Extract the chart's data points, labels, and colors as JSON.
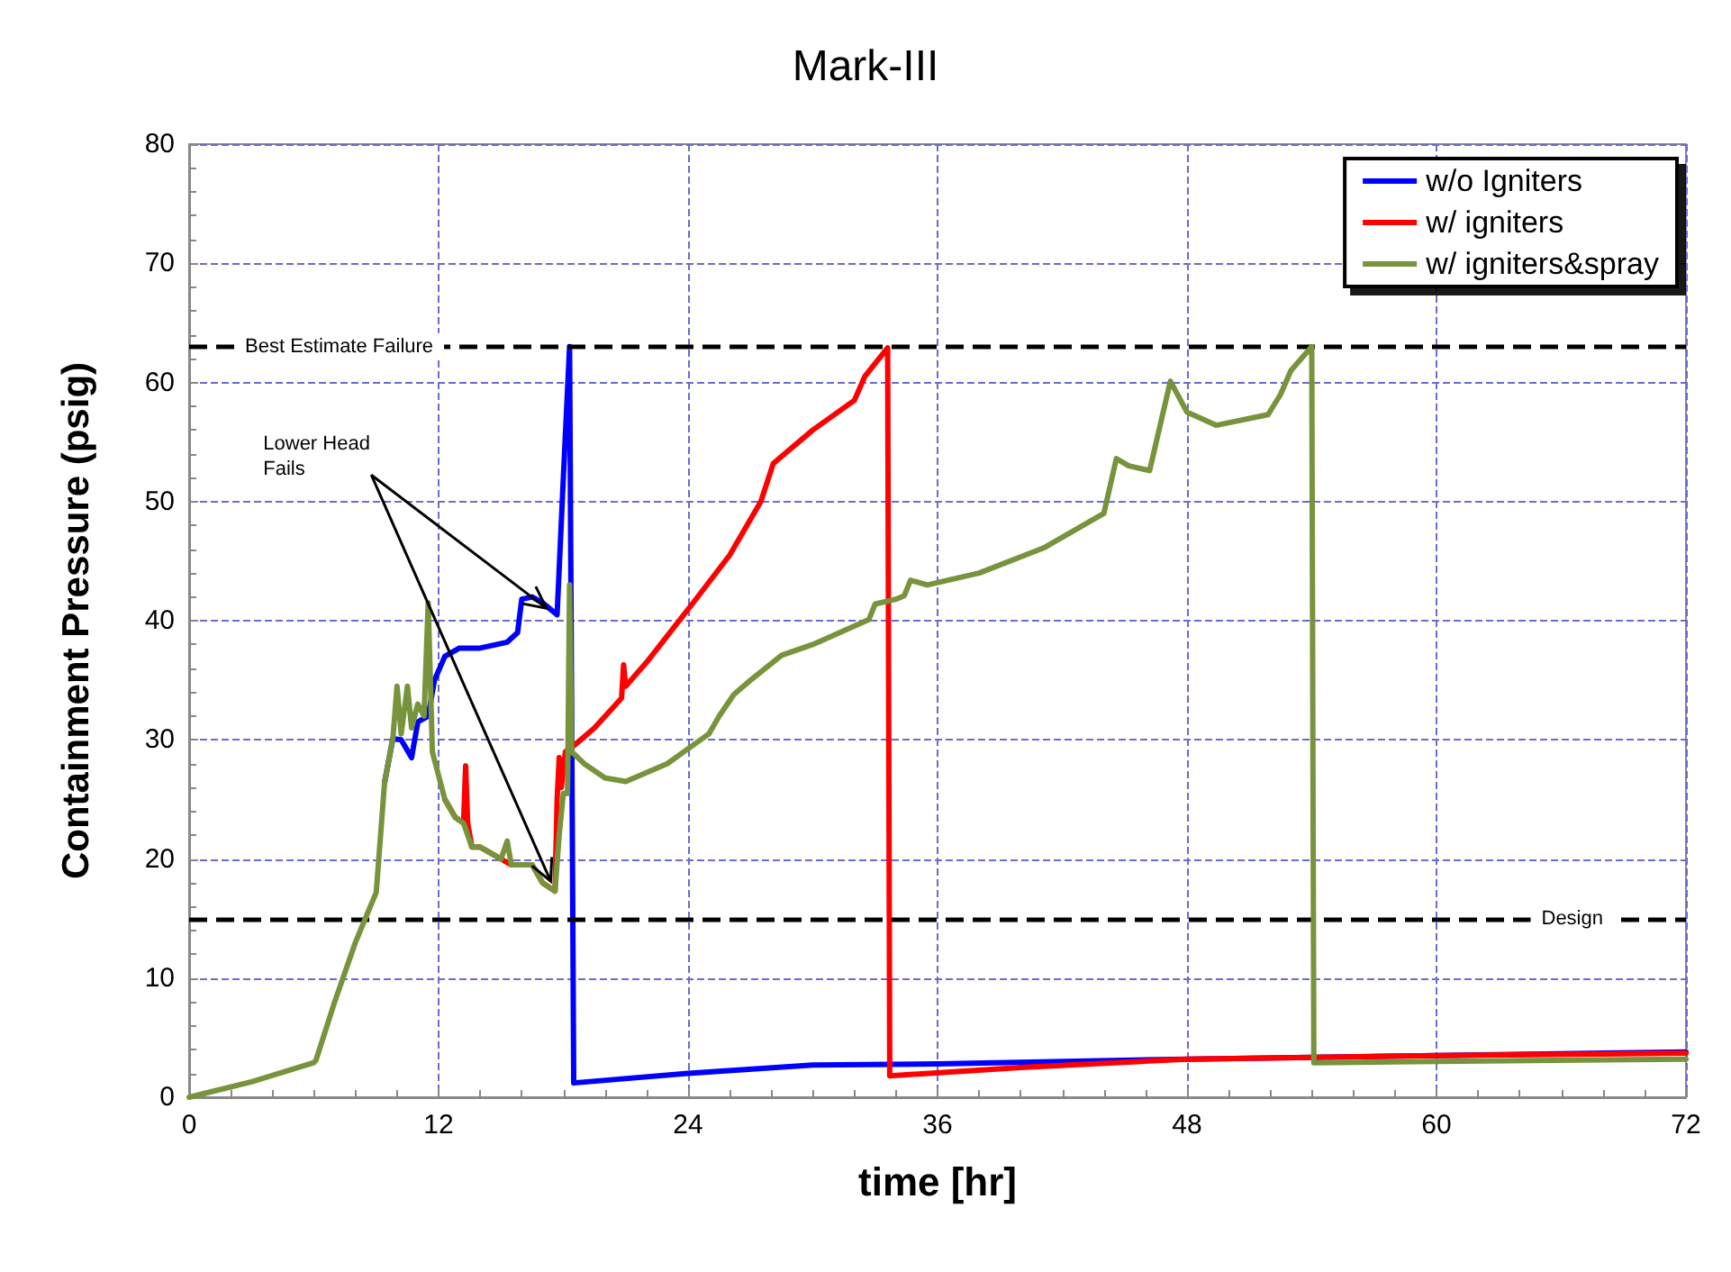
{
  "chart_data": {
    "type": "line",
    "title": "Mark-III",
    "xlabel": "time [hr]",
    "ylabel": "Containment Pressure (psig)",
    "xlim": [
      0,
      72
    ],
    "xticks": [
      0,
      12,
      24,
      36,
      48,
      60,
      72
    ],
    "ylim": [
      0,
      80
    ],
    "yticks": [
      0,
      10,
      20,
      30,
      40,
      50,
      60,
      70,
      80
    ],
    "grid": true,
    "legend": "top right",
    "marker": "none",
    "line_style": "solid",
    "series": [
      {
        "name": "w/o Igniters",
        "color": "#0000ff",
        "x": [
          9.4,
          9.8,
          10.2,
          10.7,
          11.0,
          11.5,
          11.8,
          12.3,
          13.0,
          14.0,
          15.3,
          15.8,
          16.0,
          16.5,
          17.0,
          17.7,
          18.0,
          18.3,
          18.5,
          24,
          30,
          36,
          48,
          60,
          72
        ],
        "values": [
          26.4,
          30.1,
          30,
          28.5,
          31.5,
          32,
          35,
          37,
          37.7,
          37.7,
          38.2,
          39,
          41.8,
          42,
          41.5,
          40.5,
          52,
          63,
          1.2,
          2.0,
          2.7,
          2.8,
          3.2,
          3.5,
          3.8
        ]
      },
      {
        "name": "w/ igniters",
        "color": "#ff0000",
        "x": [
          12.3,
          12.8,
          13.2,
          13.3,
          13.4,
          13.6,
          14.0,
          14.5,
          15.0,
          15.5,
          16.5,
          17.0,
          17.6,
          17.7,
          17.8,
          17.9,
          18.1,
          18.5,
          19.5,
          20.8,
          20.9,
          21.0,
          22,
          24.2,
          26,
          27.5,
          28.1,
          30,
          32,
          32.5,
          33.6,
          33.7,
          40,
          48,
          60,
          72
        ],
        "values": [
          25,
          23.5,
          23,
          27.8,
          23,
          21,
          21,
          20.5,
          20,
          19.5,
          19.5,
          18,
          17.3,
          25,
          28.5,
          26,
          29,
          29.5,
          31,
          33.5,
          36.3,
          34.5,
          36.5,
          41.4,
          45.5,
          50,
          53.2,
          56,
          58.5,
          60.5,
          62.9,
          1.8,
          2.5,
          3.2,
          3.5,
          3.7
        ]
      },
      {
        "name": "w/ igniters&spray",
        "color": "#77933c",
        "x": [
          0,
          3,
          6,
          6.1,
          7,
          8,
          9,
          9.4,
          9.8,
          10.0,
          10.2,
          10.5,
          10.7,
          11.0,
          11.3,
          11.5,
          11.7,
          12.0,
          12.3,
          12.8,
          13.2,
          13.6,
          14.0,
          14.5,
          15.0,
          15.3,
          15.5,
          16.5,
          17.0,
          17.6,
          17.8,
          18.0,
          18.2,
          18.3,
          18.4,
          19.0,
          20.0,
          21.0,
          23.0,
          25.0,
          25.5,
          26.2,
          27.0,
          28.5,
          30.0,
          32.7,
          33.0,
          34.0,
          34.4,
          34.7,
          35.5,
          38.0,
          41.1,
          44.0,
          44.6,
          45.2,
          46.2,
          47.2,
          48.0,
          49.4,
          51.9,
          52.5,
          53.0,
          54.0,
          54.1,
          60,
          72
        ],
        "values": [
          0,
          1.3,
          2.9,
          3.1,
          8,
          13,
          17.2,
          26.4,
          30.1,
          34.5,
          30.5,
          34.5,
          31,
          33,
          32,
          41.5,
          29,
          27,
          25,
          23.5,
          23,
          21,
          21,
          20.5,
          20,
          21.5,
          19.5,
          19.5,
          18,
          17.3,
          22,
          25.5,
          25.5,
          43,
          29,
          28,
          26.8,
          26.5,
          28,
          30.5,
          32,
          33.8,
          35,
          37.1,
          38,
          40.1,
          41.4,
          41.8,
          42.1,
          43.4,
          43,
          44,
          46.1,
          49,
          53.6,
          53,
          52.6,
          60.1,
          57.5,
          56.4,
          57.3,
          59,
          61,
          63,
          2.9,
          3.0,
          3.2
        ]
      }
    ],
    "ref_lines": [
      {
        "axis": "y",
        "value": 63,
        "label": "Best Estimate Failure",
        "color": "#000000",
        "line_style": "dashed"
      },
      {
        "axis": "y",
        "value": 15,
        "label": "Design",
        "color": "#000000",
        "line_style": "dashed"
      }
    ],
    "annotations": [
      {
        "text": "Lower Head Fails",
        "x": 17.6,
        "y": 17.3
      }
    ]
  }
}
